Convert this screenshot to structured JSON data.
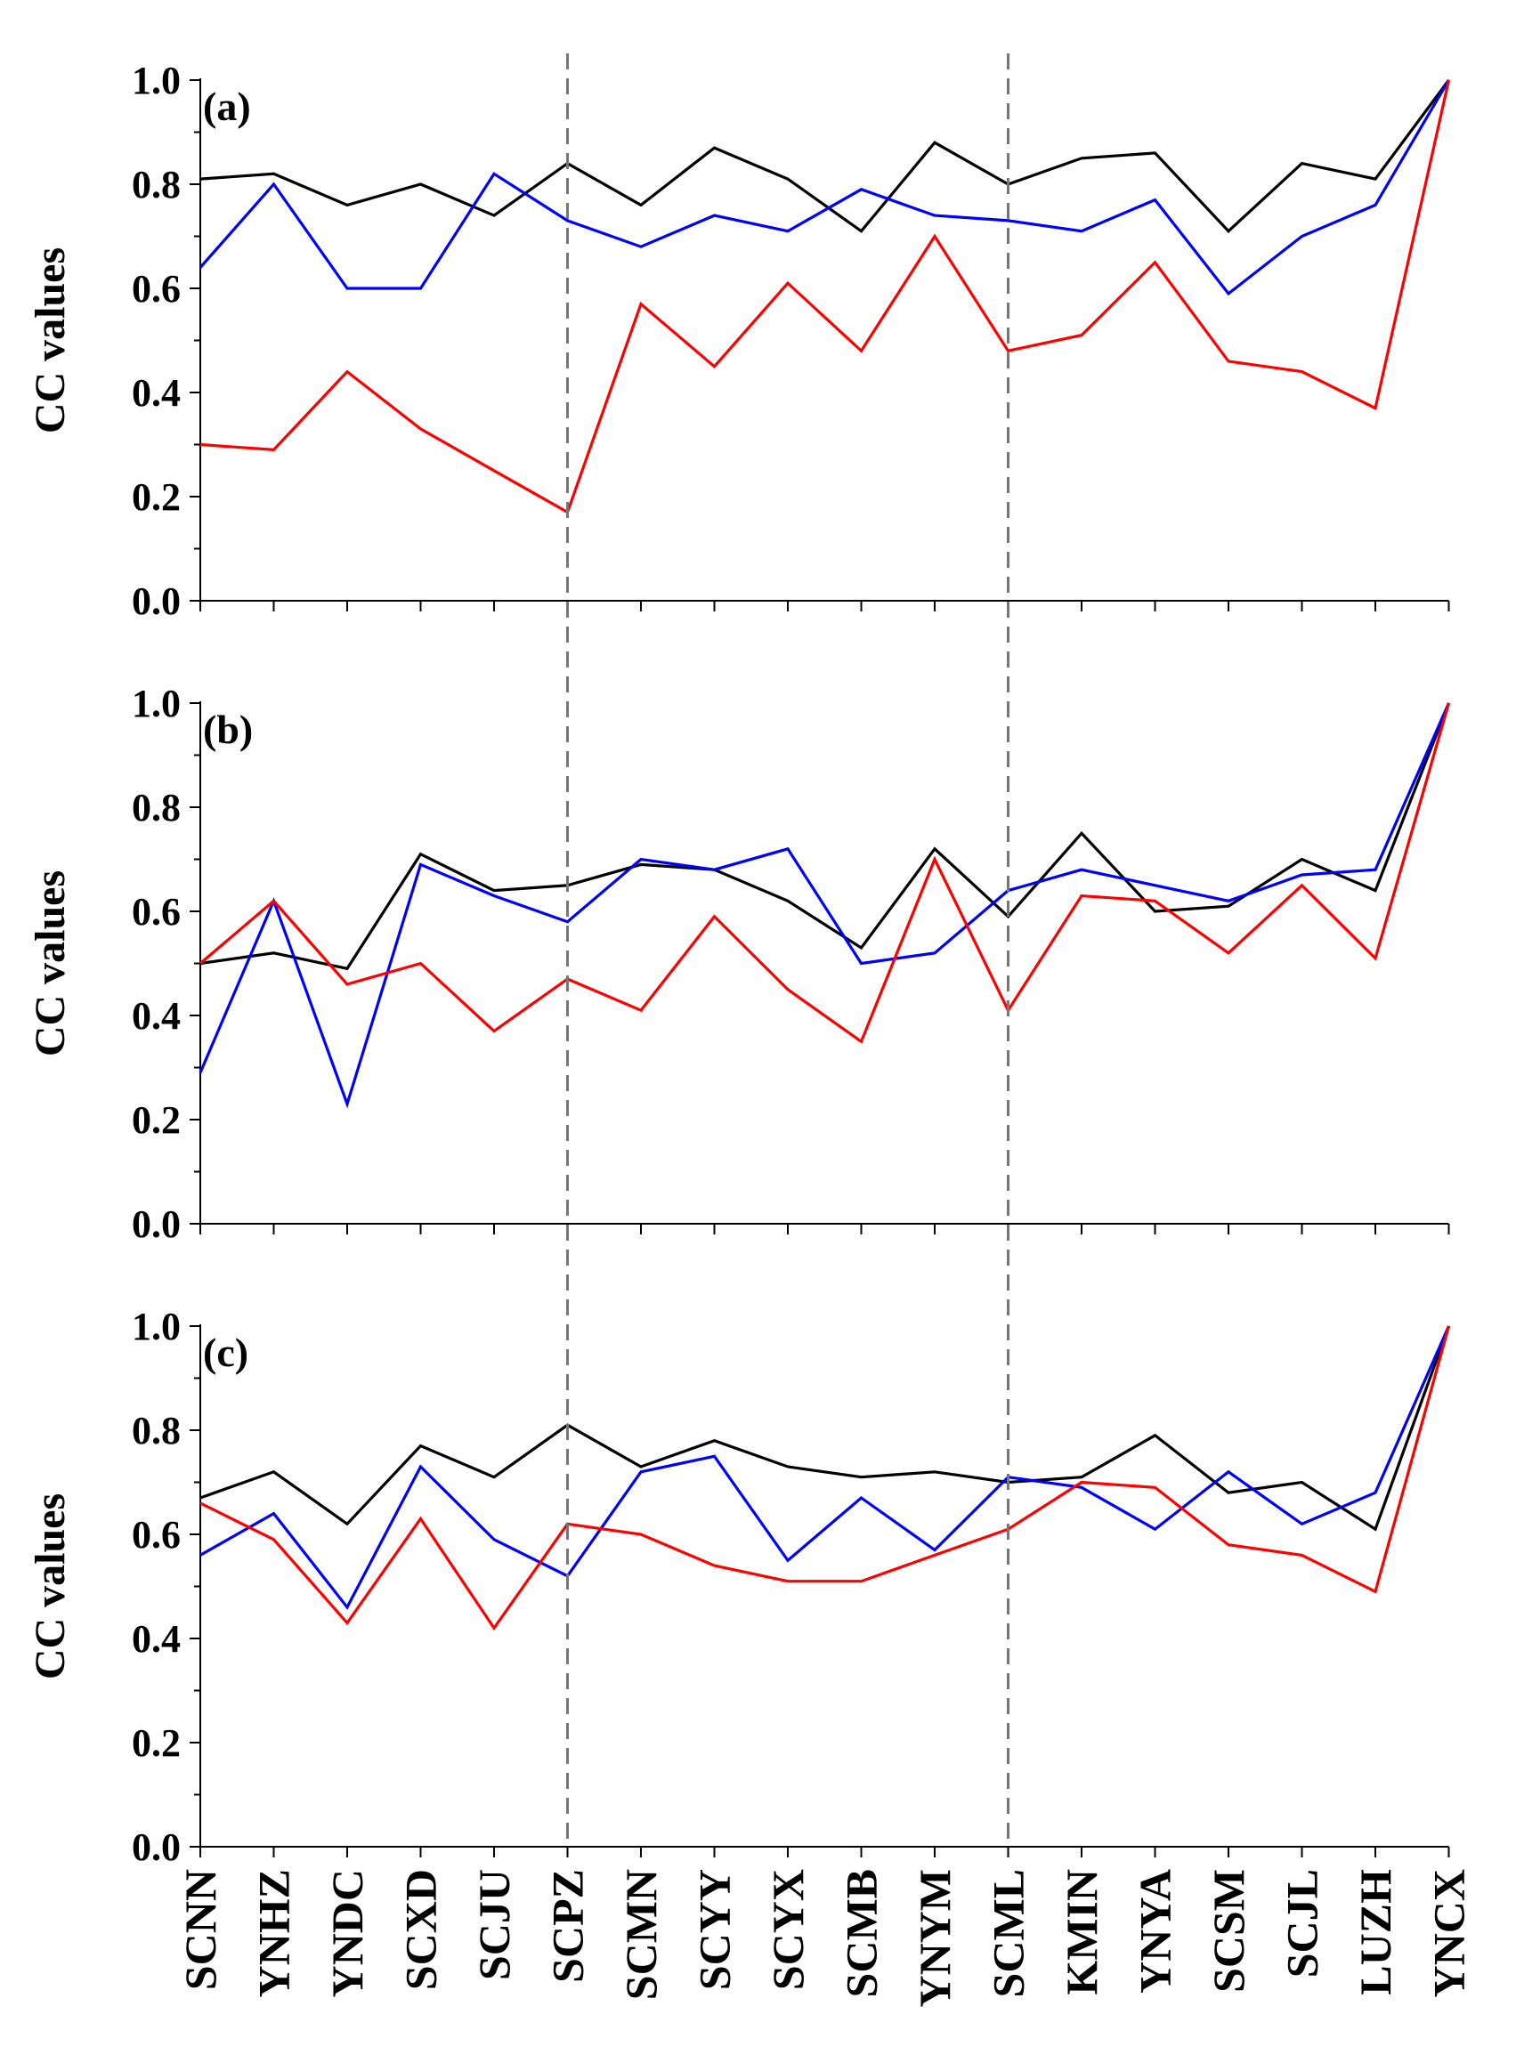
{
  "chart_data": [
    {
      "type": "line",
      "panel_label": "(a)",
      "ylabel": "CC values",
      "ylim": [
        0,
        1
      ],
      "yticks": [
        "0.0",
        "0.2",
        "0.4",
        "0.6",
        "0.8",
        "1.0"
      ],
      "categories": [
        "SCNN",
        "YNHZ",
        "YNDC",
        "SCXD",
        "SCJU",
        "SCPZ",
        "SCMN",
        "SCYY",
        "SCYX",
        "SCMB",
        "YNYM",
        "SCML",
        "KMIN",
        "YNYA",
        "SCSM",
        "SCJL",
        "LUZH",
        "YNCX"
      ],
      "separators_after_index": [
        5,
        11
      ],
      "series": [
        {
          "color": "#000000",
          "values": [
            0.81,
            0.82,
            0.76,
            0.8,
            0.74,
            0.84,
            0.76,
            0.87,
            0.81,
            0.71,
            0.88,
            0.8,
            0.85,
            0.86,
            0.71,
            0.84,
            0.81,
            1.0
          ]
        },
        {
          "color": "#0000ff",
          "values": [
            0.64,
            0.8,
            0.6,
            0.6,
            0.82,
            0.73,
            0.68,
            0.74,
            0.71,
            0.79,
            0.74,
            0.73,
            0.71,
            0.77,
            0.59,
            0.7,
            0.76,
            1.0
          ]
        },
        {
          "color": "#ff0000",
          "values": [
            0.3,
            0.29,
            0.44,
            0.33,
            0.25,
            0.17,
            0.57,
            0.45,
            0.61,
            0.48,
            0.7,
            0.48,
            0.51,
            0.65,
            0.46,
            0.44,
            0.37,
            1.0
          ]
        }
      ]
    },
    {
      "type": "line",
      "panel_label": "(b)",
      "ylabel": "CC values",
      "ylim": [
        0,
        1
      ],
      "yticks": [
        "0.0",
        "0.2",
        "0.4",
        "0.6",
        "0.8",
        "1.0"
      ],
      "categories": [
        "SCNN",
        "YNHZ",
        "YNDC",
        "SCXD",
        "SCJU",
        "SCPZ",
        "SCMN",
        "SCYY",
        "SCYX",
        "SCMB",
        "YNYM",
        "SCML",
        "KMIN",
        "YNYA",
        "SCSM",
        "SCJL",
        "LUZH",
        "YNCX"
      ],
      "separators_after_index": [
        5,
        11
      ],
      "series": [
        {
          "color": "#000000",
          "values": [
            0.5,
            0.52,
            0.49,
            0.71,
            0.64,
            0.65,
            0.69,
            0.68,
            0.62,
            0.53,
            0.72,
            0.59,
            0.75,
            0.6,
            0.61,
            0.7,
            0.64,
            1.0
          ]
        },
        {
          "color": "#0000ff",
          "values": [
            0.29,
            0.62,
            0.23,
            0.69,
            0.63,
            0.58,
            0.7,
            0.68,
            0.72,
            0.5,
            0.52,
            0.64,
            0.68,
            0.65,
            0.62,
            0.67,
            0.68,
            1.0
          ]
        },
        {
          "color": "#ff0000",
          "values": [
            0.5,
            0.62,
            0.46,
            0.5,
            0.37,
            0.47,
            0.41,
            0.59,
            0.45,
            0.35,
            0.7,
            0.41,
            0.63,
            0.62,
            0.52,
            0.65,
            0.51,
            1.0
          ]
        }
      ]
    },
    {
      "type": "line",
      "panel_label": "(c)",
      "ylabel": "CC values",
      "ylim": [
        0,
        1
      ],
      "yticks": [
        "0.0",
        "0.2",
        "0.4",
        "0.6",
        "0.8",
        "1.0"
      ],
      "categories": [
        "SCNN",
        "YNHZ",
        "YNDC",
        "SCXD",
        "SCJU",
        "SCPZ",
        "SCMN",
        "SCYY",
        "SCYX",
        "SCMB",
        "YNYM",
        "SCML",
        "KMIN",
        "YNYA",
        "SCSM",
        "SCJL",
        "LUZH",
        "YNCX"
      ],
      "separators_after_index": [
        5,
        11
      ],
      "series": [
        {
          "color": "#000000",
          "values": [
            0.67,
            0.72,
            0.62,
            0.77,
            0.71,
            0.81,
            0.73,
            0.78,
            0.73,
            0.71,
            0.72,
            0.7,
            0.71,
            0.79,
            0.68,
            0.7,
            0.61,
            1.0
          ]
        },
        {
          "color": "#0000ff",
          "values": [
            0.56,
            0.64,
            0.46,
            0.73,
            0.59,
            0.52,
            0.72,
            0.75,
            0.55,
            0.67,
            0.57,
            0.71,
            0.69,
            0.61,
            0.72,
            0.62,
            0.68,
            1.0
          ]
        },
        {
          "color": "#ff0000",
          "values": [
            0.66,
            0.59,
            0.43,
            0.63,
            0.42,
            0.62,
            0.6,
            0.54,
            0.51,
            0.51,
            0.56,
            0.61,
            0.7,
            0.69,
            0.58,
            0.56,
            0.49,
            1.0
          ]
        }
      ]
    }
  ]
}
